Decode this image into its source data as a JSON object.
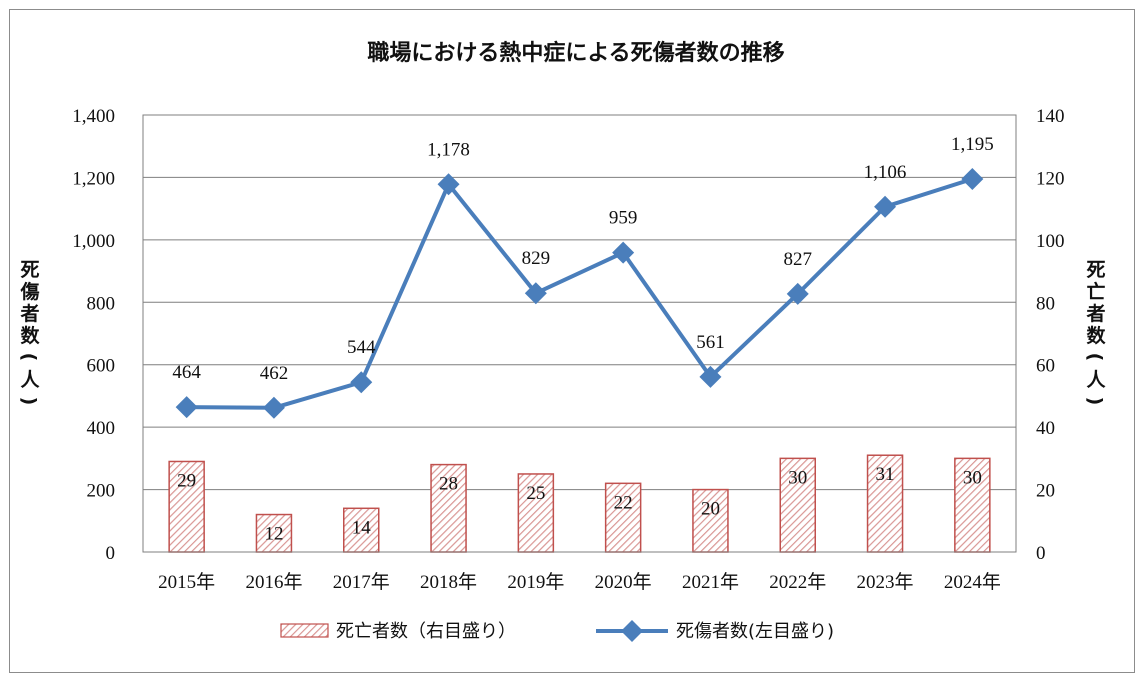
{
  "chart_data": {
    "type": "bar+line",
    "title": "職場における熱中症による死傷者数の推移",
    "categories": [
      "2015年",
      "2016年",
      "2017年",
      "2018年",
      "2019年",
      "2020年",
      "2021年",
      "2022年",
      "2023年",
      "2024年"
    ],
    "series": [
      {
        "name": "死亡者数（右目盛り）",
        "type": "bar",
        "axis": "right",
        "values": [
          29,
          12,
          14,
          28,
          25,
          22,
          20,
          30,
          31,
          30
        ],
        "labels": [
          "29",
          "12",
          "14",
          "28",
          "25",
          "22",
          "20",
          "30",
          "31",
          "30"
        ]
      },
      {
        "name": "死傷者数(左目盛り)",
        "type": "line",
        "axis": "left",
        "values": [
          464,
          462,
          544,
          1178,
          829,
          959,
          561,
          827,
          1106,
          1195
        ],
        "labels": [
          "464",
          "462",
          "544",
          "1,178",
          "829",
          "959",
          "561",
          "827",
          "1,106",
          "1,195"
        ]
      }
    ],
    "left_axis": {
      "label": "死傷者数(人)",
      "range": [
        0,
        1400
      ],
      "ticks": [
        "0",
        "200",
        "400",
        "600",
        "800",
        "1,000",
        "1,200",
        "1,400"
      ]
    },
    "right_axis": {
      "label": "死亡者数(人)",
      "range": [
        0,
        140
      ],
      "ticks": [
        "0",
        "20",
        "40",
        "60",
        "80",
        "100",
        "120",
        "140"
      ]
    },
    "grid": true,
    "legend_position": "bottom",
    "colors": {
      "bar_stroke": "#c0504d",
      "bar_hatch": "#d99694",
      "line": "#4a7ebb",
      "grid": "#7f7f7f"
    }
  }
}
